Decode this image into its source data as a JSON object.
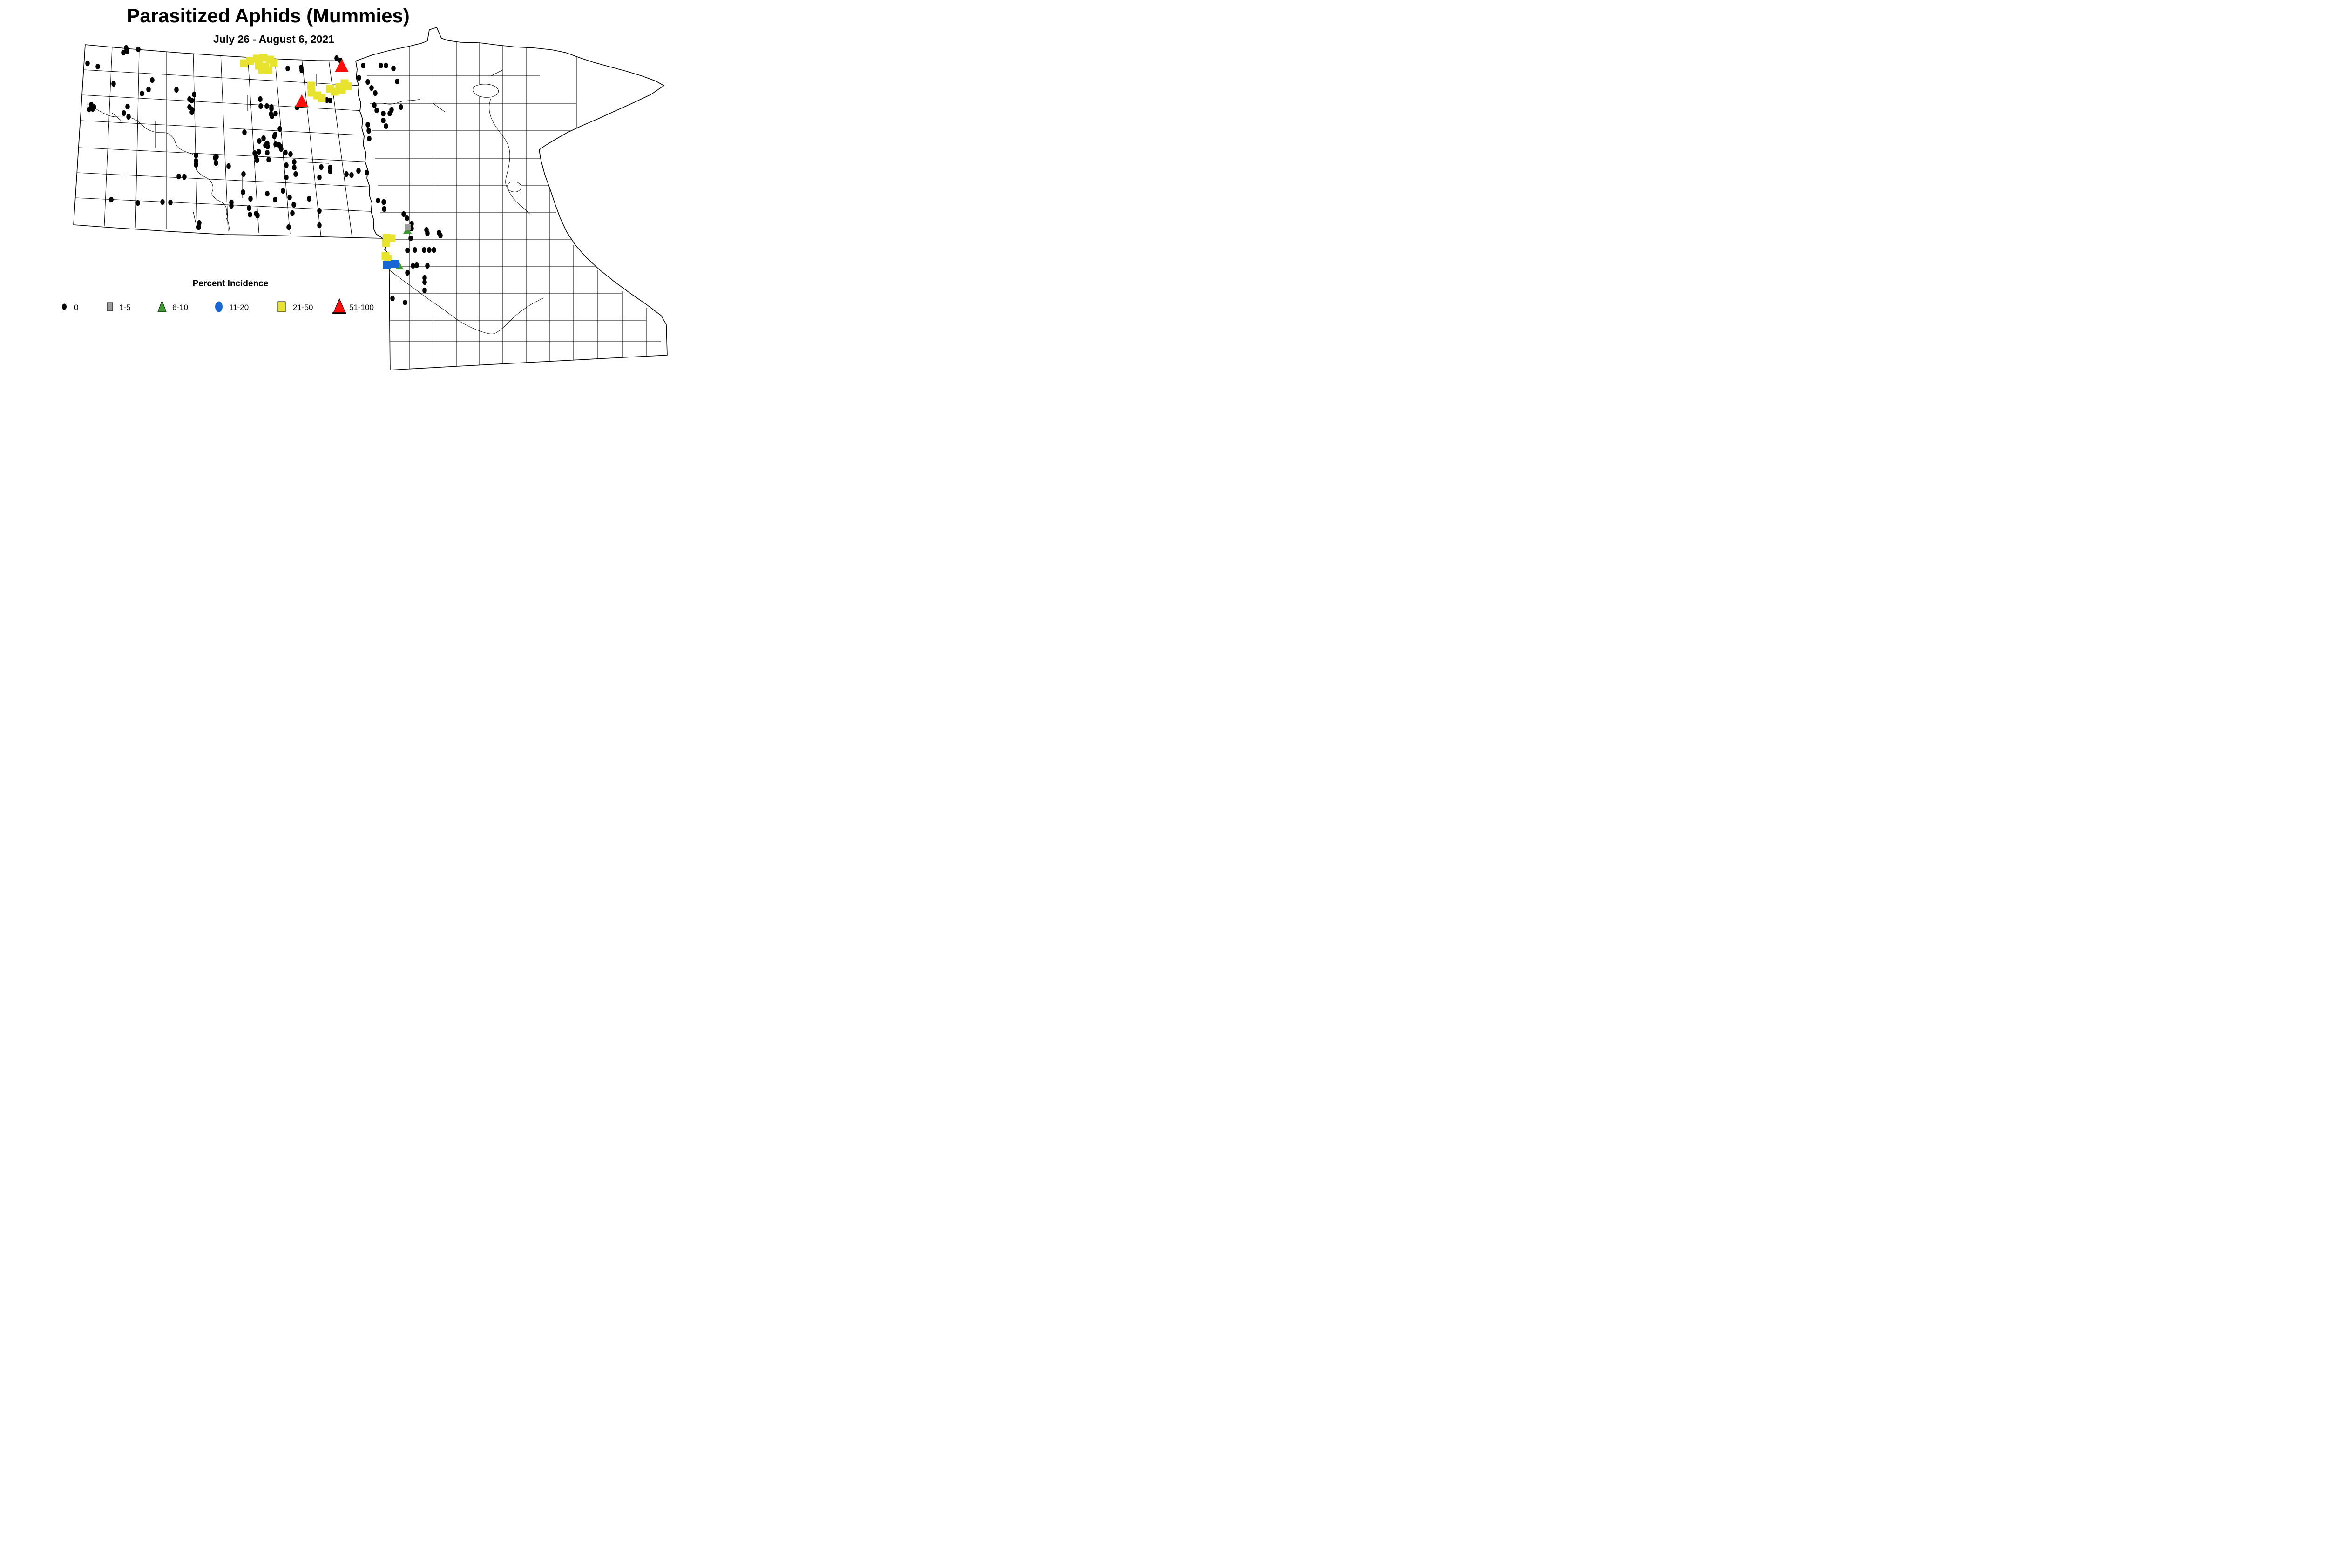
{
  "title": "Parasitized Aphids (Mummies)",
  "subtitle": "July 26 - August 6, 2021",
  "legend": {
    "title": "Percent Incidence",
    "items": [
      {
        "label": "0",
        "shape": "dot",
        "color": "#000000"
      },
      {
        "label": "1-5",
        "shape": "square",
        "color": "#9c9c9c"
      },
      {
        "label": "6-10",
        "shape": "triangle",
        "color": "#3d9b32"
      },
      {
        "label": "11-20",
        "shape": "circle",
        "color": "#1766d3"
      },
      {
        "label": "21-50",
        "shape": "square",
        "color": "#e8e32e"
      },
      {
        "label": "51-100",
        "shape": "triangle",
        "color": "#fb0d0d"
      }
    ]
  },
  "colors": {
    "dot": "#000000",
    "gray": "#9c9c9c",
    "green": "#3d9b32",
    "blue": "#1766d3",
    "yellow": "#e8e32e",
    "red": "#fb0d0d"
  },
  "map": {
    "states": [],
    "markers": {
      "dots": [
        [
          271,
          103
        ],
        [
          273,
          110
        ],
        [
          265,
          113
        ],
        [
          297,
          106
        ],
        [
          188,
          136
        ],
        [
          210,
          143
        ],
        [
          244,
          180
        ],
        [
          327,
          172
        ],
        [
          319,
          192
        ],
        [
          305,
          201
        ],
        [
          196,
          225
        ],
        [
          202,
          230
        ],
        [
          199,
          234
        ],
        [
          191,
          235
        ],
        [
          274,
          229
        ],
        [
          266,
          243
        ],
        [
          276,
          251
        ],
        [
          379,
          193
        ],
        [
          417,
          203
        ],
        [
          407,
          213
        ],
        [
          412,
          216
        ],
        [
          407,
          230
        ],
        [
          413,
          236
        ],
        [
          412,
          241
        ],
        [
          618,
          147
        ],
        [
          647,
          145
        ],
        [
          648,
          151
        ],
        [
          723,
          125
        ],
        [
          731,
          130
        ],
        [
          780,
          141
        ],
        [
          818,
          141
        ],
        [
          829,
          141
        ],
        [
          845,
          147
        ],
        [
          853,
          175
        ],
        [
          771,
          167
        ],
        [
          790,
          176
        ],
        [
          798,
          189
        ],
        [
          806,
          200
        ],
        [
          804,
          226
        ],
        [
          809,
          237
        ],
        [
          702,
          215
        ],
        [
          709,
          216
        ],
        [
          638,
          231
        ],
        [
          861,
          230
        ],
        [
          841,
          236
        ],
        [
          823,
          244
        ],
        [
          837,
          244
        ],
        [
          823,
          259
        ],
        [
          829,
          271
        ],
        [
          790,
          268
        ],
        [
          792,
          281
        ],
        [
          793,
          298
        ],
        [
          559,
          213
        ],
        [
          560,
          228
        ],
        [
          573,
          228
        ],
        [
          583,
          230
        ],
        [
          583,
          234
        ],
        [
          582,
          245
        ],
        [
          592,
          244
        ],
        [
          584,
          250
        ],
        [
          525,
          284
        ],
        [
          601,
          277
        ],
        [
          591,
          289
        ],
        [
          589,
          293
        ],
        [
          566,
          297
        ],
        [
          557,
          303
        ],
        [
          574,
          308
        ],
        [
          570,
          312
        ],
        [
          575,
          315
        ],
        [
          592,
          310
        ],
        [
          599,
          311
        ],
        [
          602,
          315
        ],
        [
          604,
          320
        ],
        [
          547,
          329
        ],
        [
          556,
          326
        ],
        [
          574,
          328
        ],
        [
          550,
          337
        ],
        [
          552,
          344
        ],
        [
          577,
          343
        ],
        [
          613,
          328
        ],
        [
          624,
          331
        ],
        [
          632,
          348
        ],
        [
          615,
          355
        ],
        [
          632,
          360
        ],
        [
          635,
          374
        ],
        [
          615,
          381
        ],
        [
          523,
          374
        ],
        [
          690,
          359
        ],
        [
          709,
          360
        ],
        [
          709,
          368
        ],
        [
          686,
          381
        ],
        [
          744,
          374
        ],
        [
          755,
          376
        ],
        [
          770,
          367
        ],
        [
          788,
          371
        ],
        [
          522,
          413
        ],
        [
          574,
          416
        ],
        [
          608,
          410
        ],
        [
          538,
          427
        ],
        [
          591,
          429
        ],
        [
          622,
          424
        ],
        [
          664,
          427
        ],
        [
          631,
          440
        ],
        [
          535,
          447
        ],
        [
          537,
          461
        ],
        [
          550,
          459
        ],
        [
          553,
          463
        ],
        [
          628,
          458
        ],
        [
          686,
          453
        ],
        [
          620,
          488
        ],
        [
          686,
          484
        ],
        [
          421,
          334
        ],
        [
          462,
          339
        ],
        [
          465,
          337
        ],
        [
          464,
          350
        ],
        [
          491,
          357
        ],
        [
          421,
          346
        ],
        [
          421,
          354
        ],
        [
          384,
          379
        ],
        [
          396,
          380
        ],
        [
          239,
          429
        ],
        [
          296,
          436
        ],
        [
          349,
          434
        ],
        [
          366,
          435
        ],
        [
          497,
          435
        ],
        [
          497,
          442
        ],
        [
          428,
          479
        ],
        [
          427,
          488
        ],
        [
          812,
          431
        ],
        [
          824,
          434
        ],
        [
          825,
          449
        ],
        [
          867,
          460
        ],
        [
          874,
          469
        ],
        [
          884,
          481
        ],
        [
          884,
          491
        ],
        [
          916,
          494
        ],
        [
          918,
          501
        ],
        [
          943,
          500
        ],
        [
          946,
          506
        ],
        [
          882,
          512
        ],
        [
          875,
          538
        ],
        [
          891,
          537
        ],
        [
          911,
          537
        ],
        [
          922,
          537
        ],
        [
          932,
          537
        ],
        [
          887,
          571
        ],
        [
          895,
          570
        ],
        [
          918,
          571
        ],
        [
          875,
          586
        ],
        [
          912,
          597
        ],
        [
          912,
          606
        ],
        [
          912,
          624
        ],
        [
          843,
          641
        ],
        [
          870,
          650
        ]
      ],
      "yellow_squares": [
        [
          524,
          136
        ],
        [
          537,
          131
        ],
        [
          552,
          126
        ],
        [
          566,
          124
        ],
        [
          580,
          128
        ],
        [
          588,
          135
        ],
        [
          556,
          141
        ],
        [
          570,
          143
        ],
        [
          563,
          150
        ],
        [
          576,
          151
        ],
        [
          668,
          184
        ],
        [
          669,
          199
        ],
        [
          681,
          205
        ],
        [
          691,
          211
        ],
        [
          709,
          191
        ],
        [
          719,
          197
        ],
        [
          729,
          187
        ],
        [
          740,
          179
        ],
        [
          747,
          185
        ],
        [
          734,
          193
        ],
        [
          831,
          511
        ],
        [
          841,
          512
        ],
        [
          829,
          522
        ],
        [
          828,
          550
        ],
        [
          833,
          556
        ]
      ],
      "green_triangles": [
        [
          875,
          495
        ],
        [
          858,
          572
        ]
      ],
      "blue_squares": [
        [
          831,
          569
        ],
        [
          849,
          567
        ]
      ],
      "gray_squares": [
        [
          876,
          488
        ]
      ],
      "red_triangles": [
        [
          734,
          141
        ],
        [
          648,
          217
        ]
      ]
    }
  }
}
